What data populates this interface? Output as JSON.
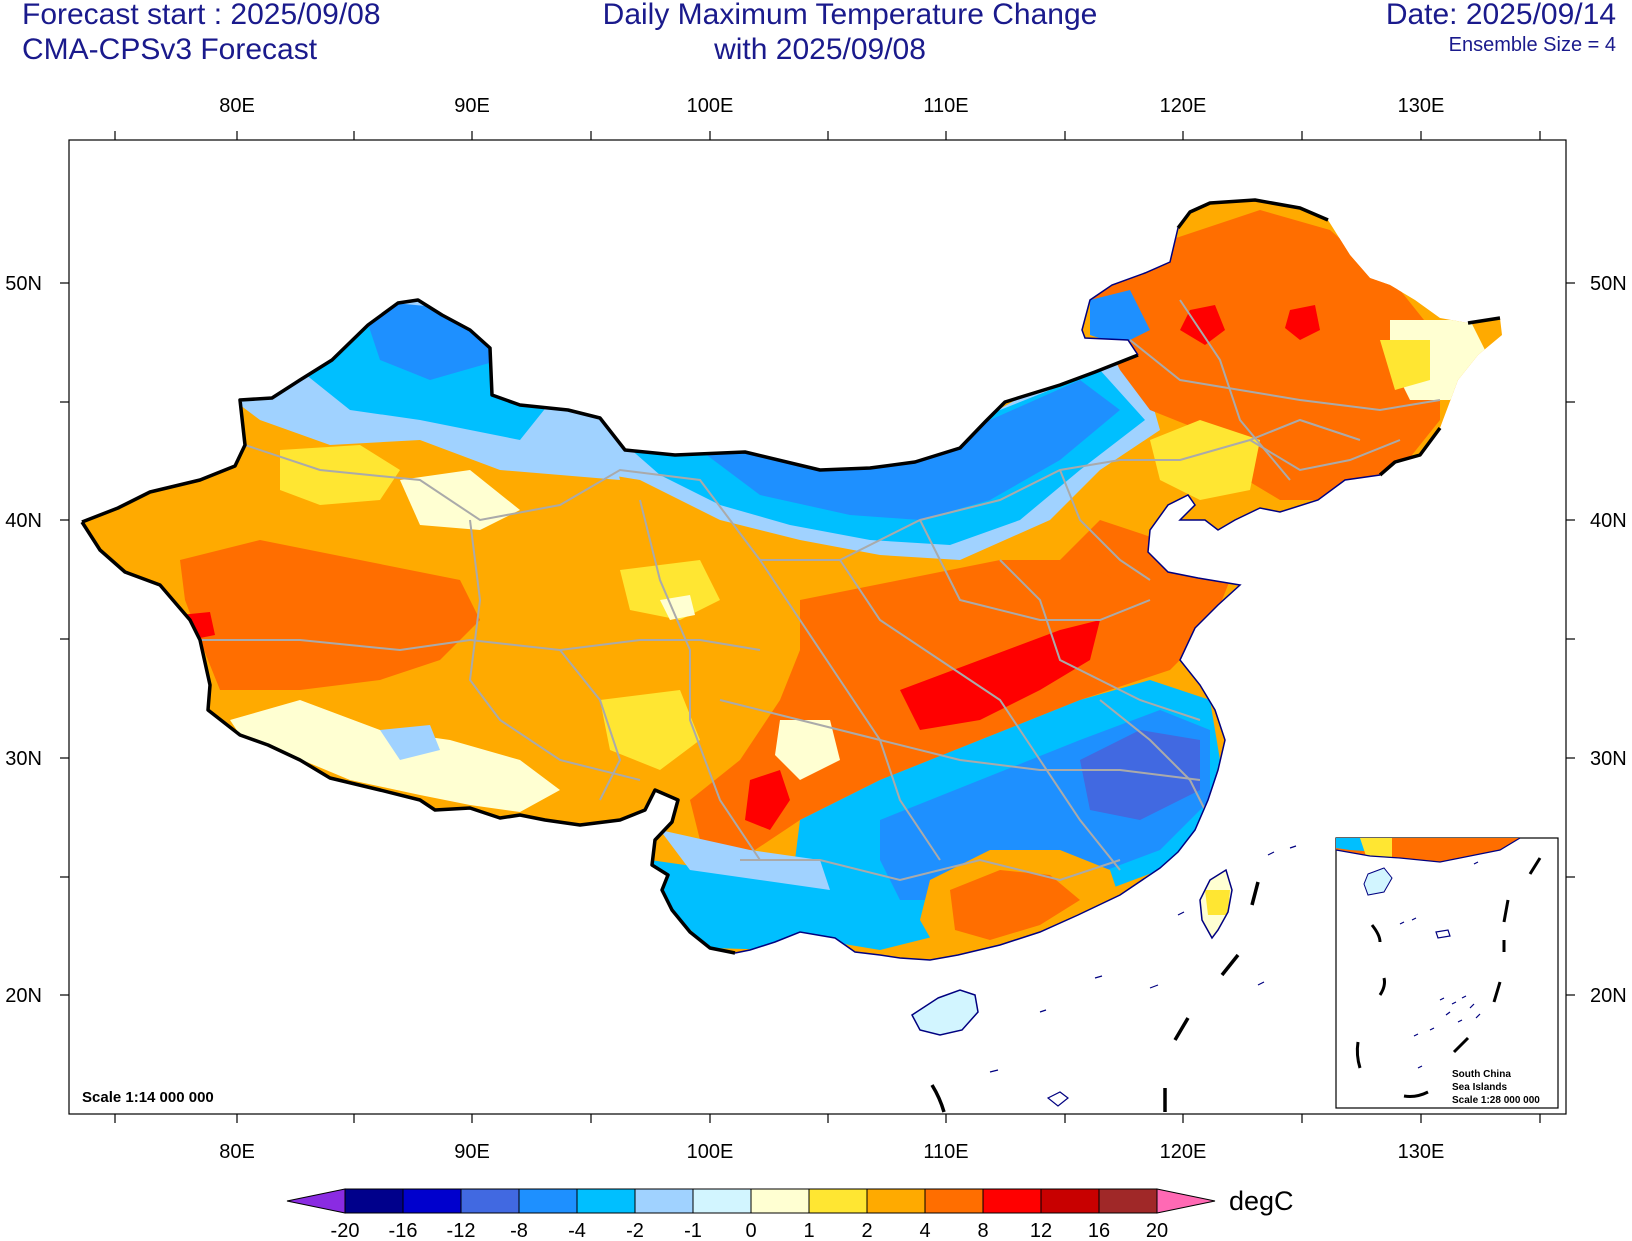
{
  "header": {
    "forecast_start": "Forecast start : 2025/09/08",
    "model": "CMA-CPSv3 Forecast",
    "title_line1": "Daily Maximum Temperature Change",
    "title_line2": "with 2025/09/08",
    "date": "Date: 2025/09/14",
    "ensemble": "Ensemble Size = 4"
  },
  "map": {
    "lon_ticks": [
      "80E",
      "90E",
      "100E",
      "110E",
      "120E",
      "130E"
    ],
    "lat_ticks": [
      "50N",
      "40N",
      "30N",
      "20N"
    ],
    "scale_label": "Scale 1:14 000 000",
    "inset": {
      "line1": "South China",
      "line2": "Sea Islands",
      "line3": "Scale 1:28 000 000"
    }
  },
  "colorbar": {
    "labels": [
      "-20",
      "-16",
      "-12",
      "-8",
      "-4",
      "-2",
      "-1",
      "0",
      "1",
      "2",
      "4",
      "8",
      "12",
      "16",
      "20"
    ],
    "colors": [
      "#00008b",
      "#0000cd",
      "#4169e1",
      "#1e90ff",
      "#00bfff",
      "#a0d2ff",
      "#d2f5ff",
      "#ffffd2",
      "#ffe632",
      "#ffaa00",
      "#ff6e00",
      "#ff0000",
      "#c80000",
      "#a02828"
    ],
    "low_color": "#8a2be2",
    "high_color": "#ff69b4",
    "units": "degC"
  },
  "colors": {
    "header_text": "#1a1a8c",
    "province_lines": "#aaaaaa",
    "coast": "#000080"
  }
}
